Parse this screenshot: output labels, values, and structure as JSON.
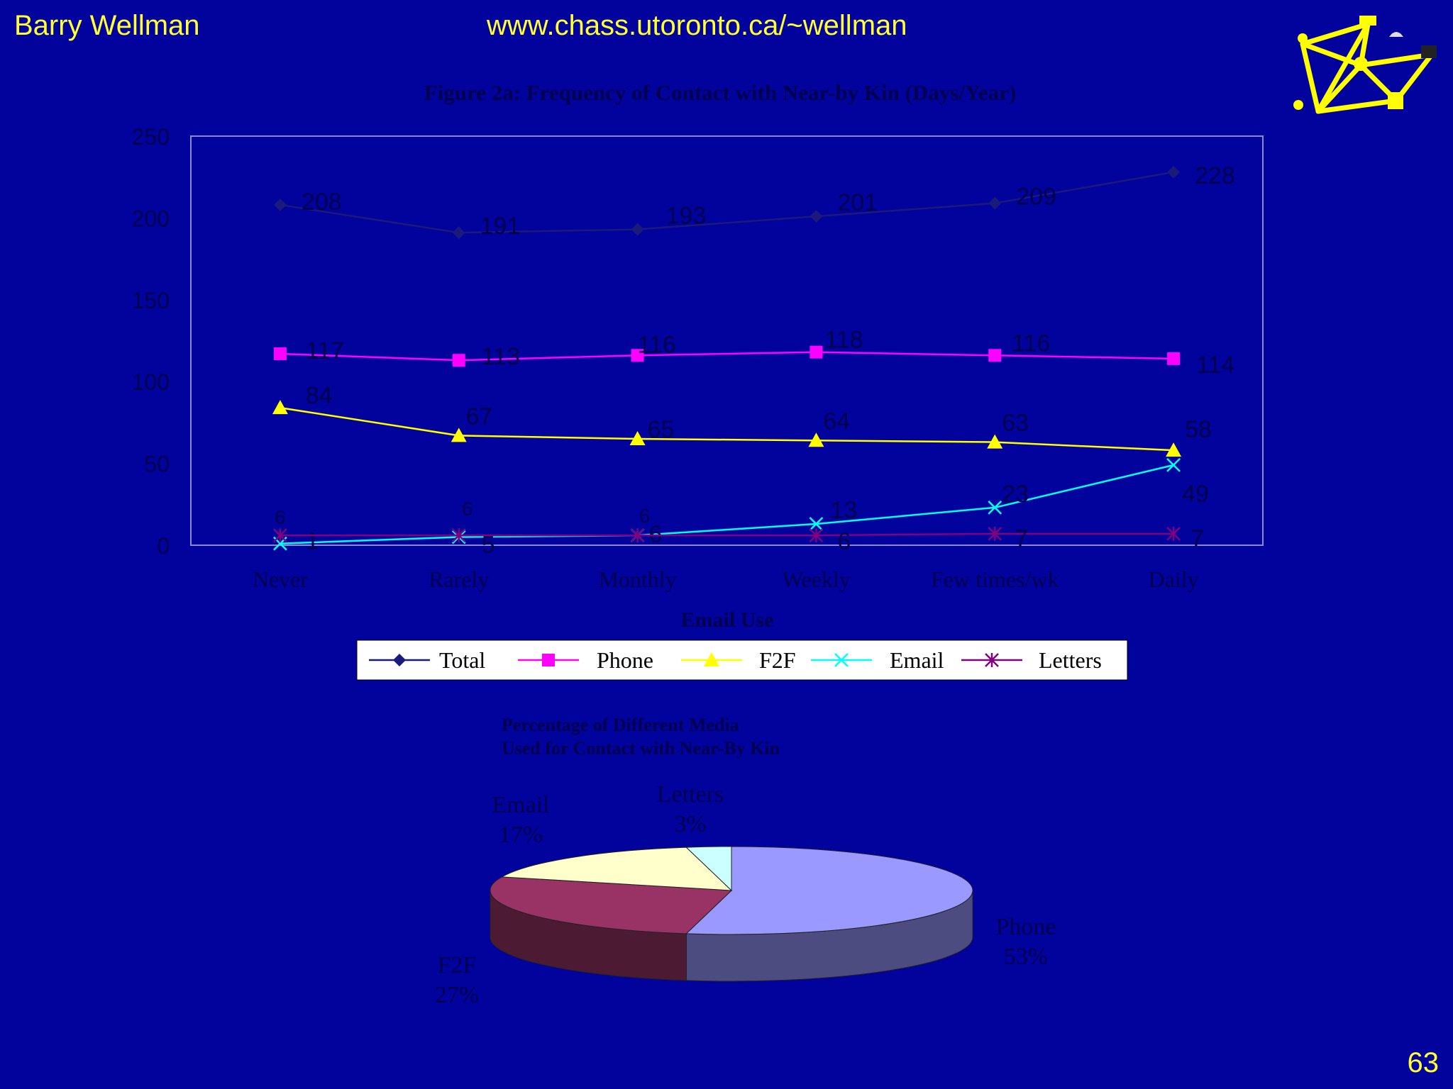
{
  "header": {
    "author": "Barry Wellman",
    "url": "www.chass.utoronto.ca/~wellman"
  },
  "slide_number": "63",
  "colors": {
    "background": "#02029c",
    "header_text": "#ffff33",
    "total": "#1a1a7a",
    "phone": "#ff00ff",
    "f2f": "#ffff00",
    "email": "#00ffff",
    "letters": "#800080"
  },
  "chart_data": [
    {
      "type": "line",
      "title": "Figure 2a: Frequency of Contact with Near-by Kin (Days/Year)",
      "xlabel": "Email Use",
      "ylabel": "",
      "categories": [
        "Never",
        "Rarely",
        "Monthly",
        "Weekly",
        "Few times/wk",
        "Daily"
      ],
      "ylim": [
        0,
        250
      ],
      "yticks": [
        0,
        50,
        100,
        150,
        200,
        250
      ],
      "grid": false,
      "legend_position": "bottom",
      "series": [
        {
          "name": "Total",
          "values": [
            208,
            191,
            193,
            201,
            209,
            228
          ],
          "color": "#1a1a7a",
          "marker": "diamond"
        },
        {
          "name": "Phone",
          "values": [
            117,
            113,
            116,
            118,
            116,
            114
          ],
          "color": "#ff00ff",
          "marker": "square"
        },
        {
          "name": "F2F",
          "values": [
            84,
            67,
            65,
            64,
            63,
            58
          ],
          "color": "#ffff00",
          "marker": "triangle"
        },
        {
          "name": "Email",
          "values": [
            1,
            5,
            6,
            13,
            23,
            49
          ],
          "color": "#00ffff",
          "marker": "x"
        },
        {
          "name": "Letters",
          "values": [
            6,
            6,
            6,
            6,
            7,
            7
          ],
          "color": "#800080",
          "marker": "star"
        }
      ]
    },
    {
      "type": "pie",
      "title": "Percentage of Different Media Used for Contact with Near-By Kin",
      "title_lines": [
        "Percentage of Different Media",
        "Used for Contact with Near-By Kin"
      ],
      "slices": [
        {
          "label": "Phone",
          "value": 53,
          "pct_label": "53%",
          "color": "#9999ff",
          "side_color": "#4c4c80"
        },
        {
          "label": "F2F",
          "value": 27,
          "pct_label": "27%",
          "color": "#993366",
          "side_color": "#4d1a33"
        },
        {
          "label": "Email",
          "value": 17,
          "pct_label": "17%",
          "color": "#ffffcc",
          "side_color": "#808066"
        },
        {
          "label": "Letters",
          "value": 3,
          "pct_label": "3%",
          "color": "#ccffff",
          "side_color": "#668080"
        }
      ]
    }
  ]
}
